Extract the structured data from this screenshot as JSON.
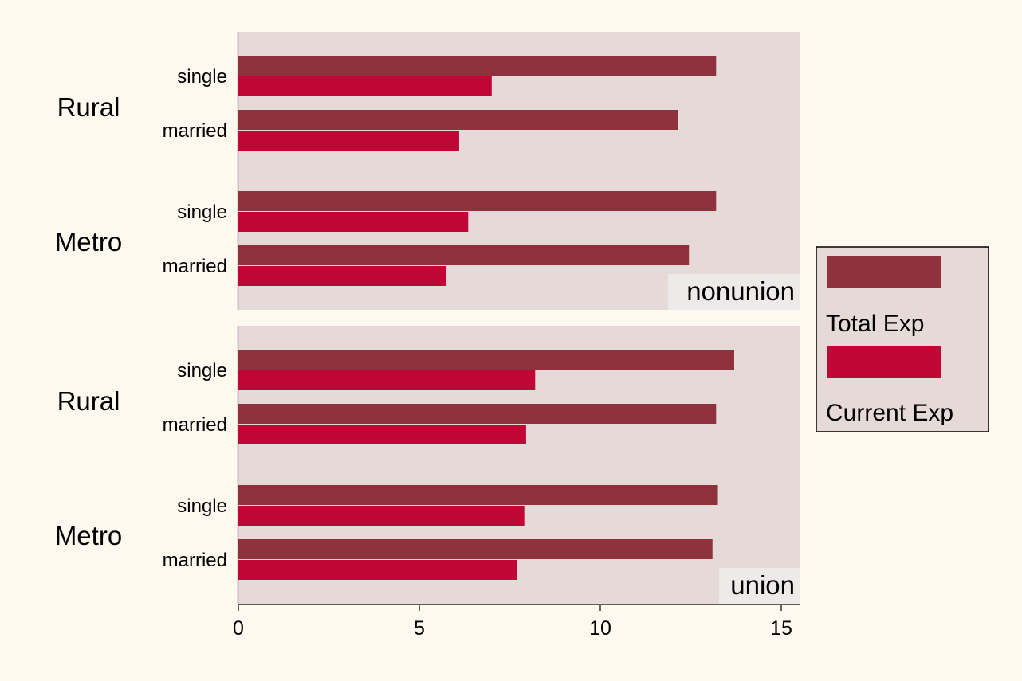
{
  "colors": {
    "background": "#fef9ef",
    "panel": "#e6dad9",
    "total_exp": "#8e333d",
    "current_exp": "#c10535",
    "label_box": "#eeeaea"
  },
  "chart_data": {
    "type": "bar",
    "orientation": "horizontal",
    "xlim": [
      0,
      15.5
    ],
    "x_ticks": [
      0,
      5,
      10,
      15
    ],
    "grid": false,
    "legend_position": "right",
    "series": [
      {
        "name": "Total Exp",
        "color_key": "total_exp"
      },
      {
        "name": "Current Exp",
        "color_key": "current_exp"
      }
    ],
    "panels": [
      {
        "label": "nonunion",
        "groups": [
          {
            "label": "Rural",
            "bars": [
              {
                "label": "single",
                "values": [
                  13.2,
                  7.0
                ]
              },
              {
                "label": "married",
                "values": [
                  12.15,
                  6.1
                ]
              }
            ]
          },
          {
            "label": "Metro",
            "bars": [
              {
                "label": "single",
                "values": [
                  13.2,
                  6.35
                ]
              },
              {
                "label": "married",
                "values": [
                  12.45,
                  5.75
                ]
              }
            ]
          }
        ]
      },
      {
        "label": "union",
        "groups": [
          {
            "label": "Rural",
            "bars": [
              {
                "label": "single",
                "values": [
                  13.7,
                  8.2
                ]
              },
              {
                "label": "married",
                "values": [
                  13.2,
                  7.95
                ]
              }
            ]
          },
          {
            "label": "Metro",
            "bars": [
              {
                "label": "single",
                "values": [
                  13.25,
                  7.9
                ]
              },
              {
                "label": "married",
                "values": [
                  13.1,
                  7.7
                ]
              }
            ]
          }
        ]
      }
    ]
  }
}
